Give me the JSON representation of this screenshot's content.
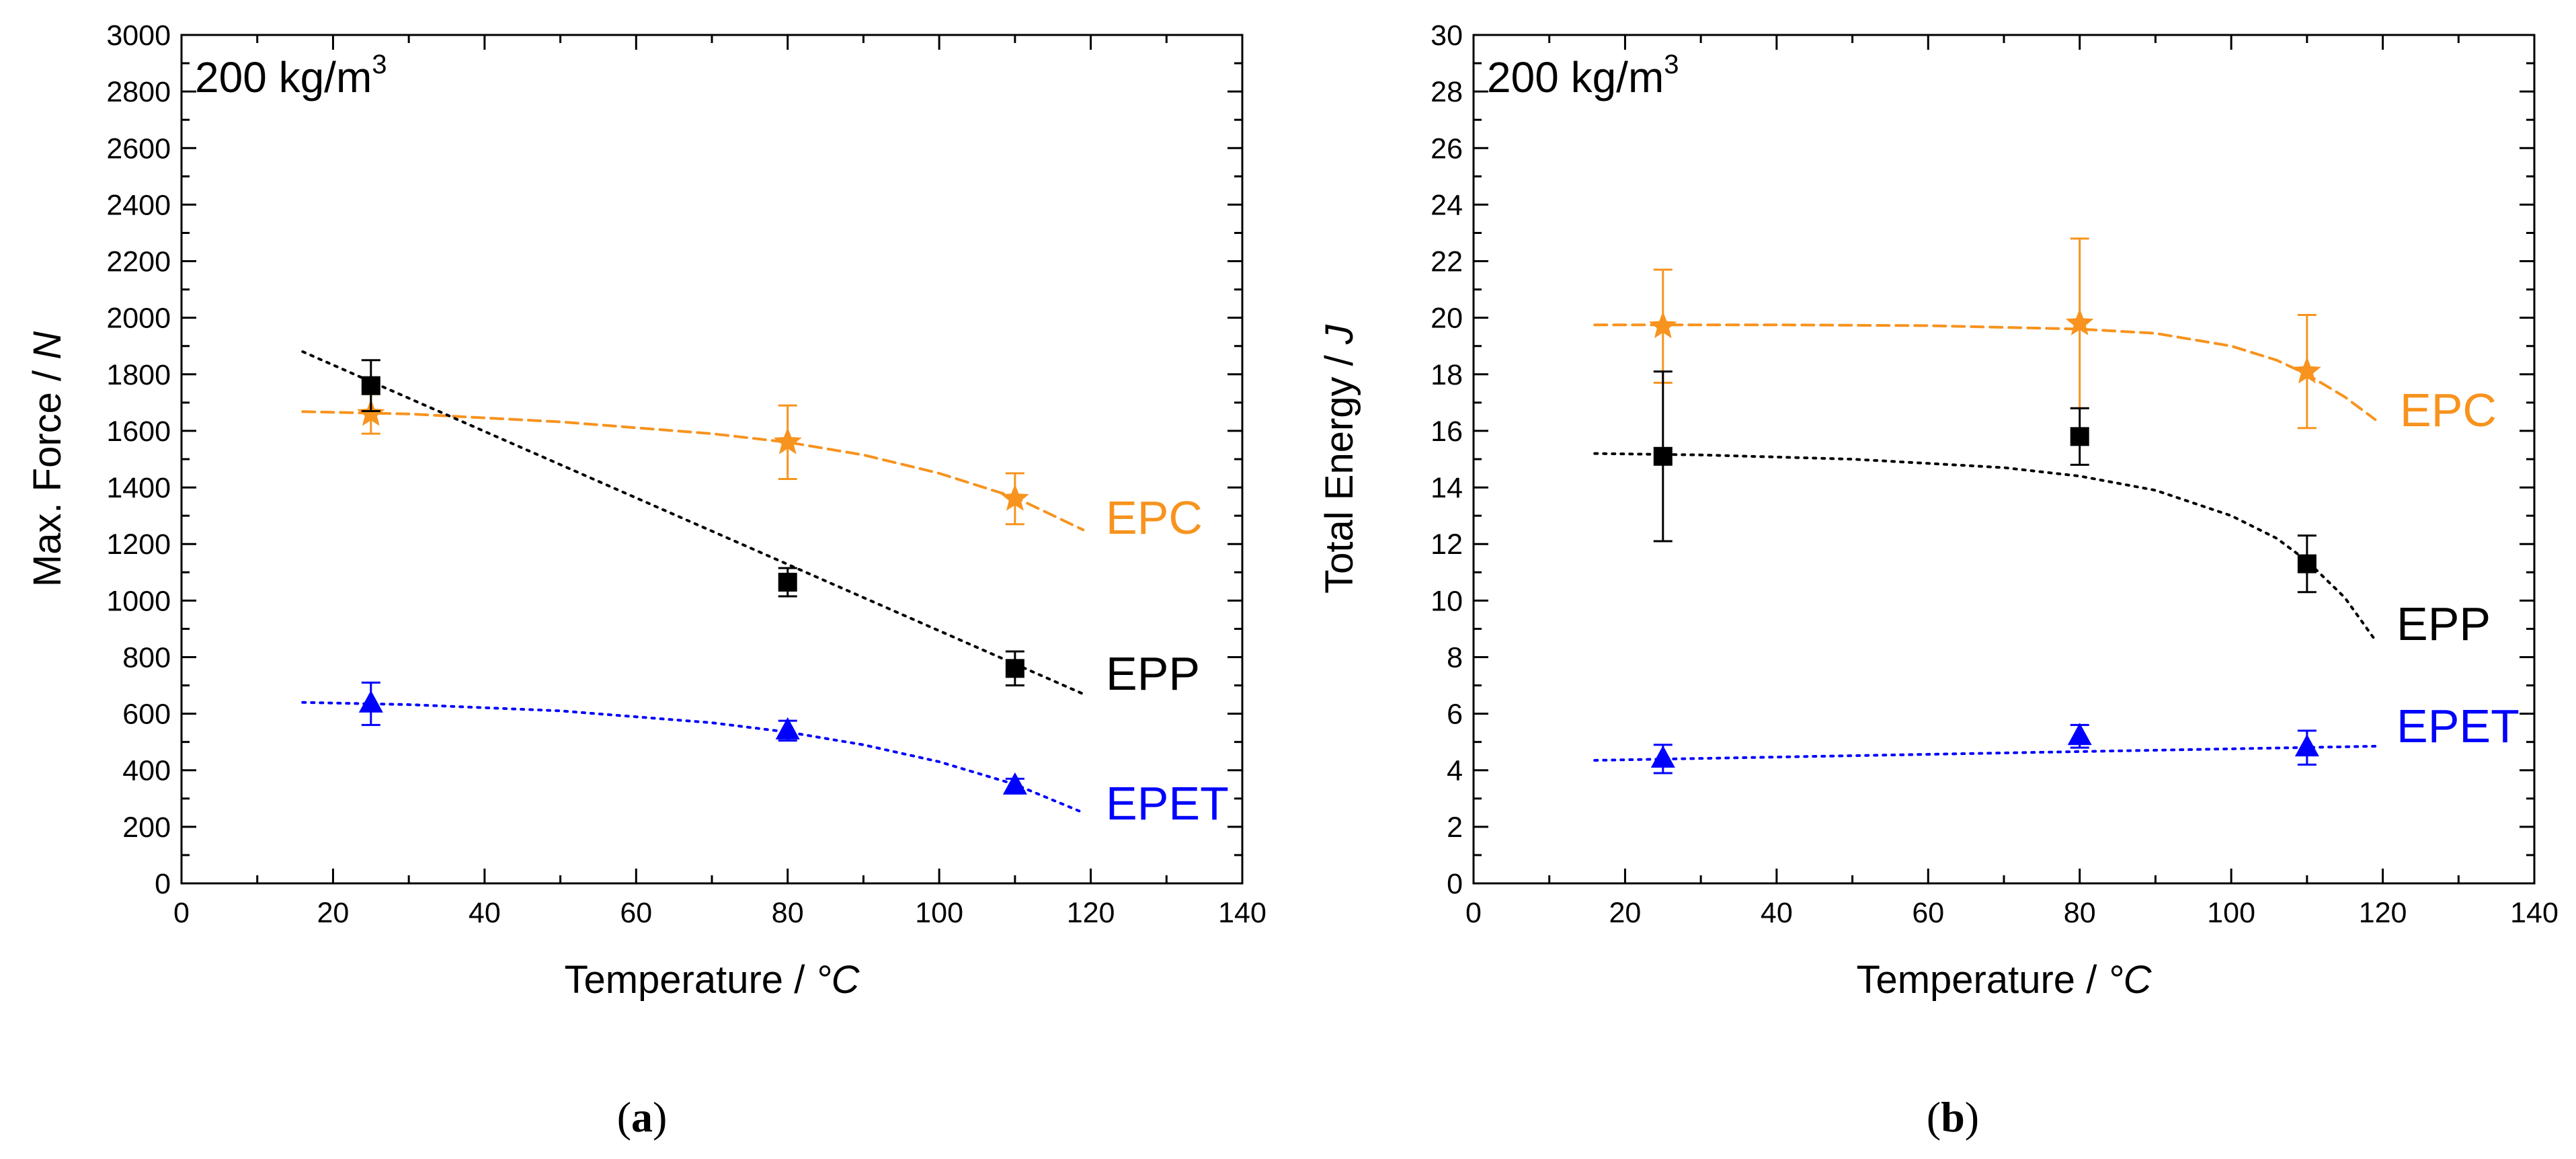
{
  "colors": {
    "EPC": "#f7931e",
    "EPP": "#000000",
    "EPET": "#0000ff"
  },
  "chart_data": [
    {
      "type": "scatter",
      "panel_label": "(a)",
      "panel_letter": "a",
      "annotation": "200 kg/m",
      "annotation_sup": "3",
      "xlabel": "Temperature",
      "xunit": "°C",
      "ylabel": "Max. Force",
      "yunit": "N",
      "xlim": [
        0,
        140
      ],
      "ylim": [
        0,
        3000
      ],
      "xticks": [
        0,
        20,
        40,
        60,
        80,
        100,
        120,
        140
      ],
      "yticks": [
        0,
        200,
        400,
        600,
        800,
        1000,
        1200,
        1400,
        1600,
        1800,
        2000,
        2200,
        2400,
        2600,
        2800,
        3000
      ],
      "grid": false,
      "series": [
        {
          "name": "EPC",
          "marker": "star",
          "x": [
            25,
            80,
            110
          ],
          "y": [
            1660,
            1560,
            1360
          ],
          "err": [
            70,
            130,
            90
          ],
          "fit": {
            "x": [
              16,
              30,
              50,
              70,
              80,
              90,
              100,
              110,
              119
            ],
            "y": [
              1668,
              1660,
              1632,
              1590,
              1560,
              1515,
              1450,
              1365,
              1250
            ],
            "style": "dashed"
          }
        },
        {
          "name": "EPP",
          "marker": "square",
          "x": [
            25,
            80,
            110
          ],
          "y": [
            1760,
            1065,
            760
          ],
          "err": [
            90,
            50,
            60
          ],
          "fit": {
            "x": [
              16,
              119
            ],
            "y": [
              1880,
              670
            ],
            "style": "dotted"
          }
        },
        {
          "name": "EPET",
          "marker": "triangle",
          "x": [
            25,
            80,
            110
          ],
          "y": [
            635,
            540,
            345
          ],
          "err": [
            75,
            35,
            25
          ],
          "fit": {
            "x": [
              16,
              30,
              50,
              70,
              80,
              90,
              100,
              110,
              119
            ],
            "y": [
              640,
              632,
              610,
              568,
              535,
              490,
              430,
              350,
              250
            ],
            "style": "dotted"
          }
        }
      ]
    },
    {
      "type": "scatter",
      "panel_label": "(b)",
      "panel_letter": "b",
      "annotation": "200 kg/m",
      "annotation_sup": "3",
      "xlabel": "Temperature",
      "xunit": "°C",
      "ylabel": "Total Energy",
      "yunit": "J",
      "xlim": [
        0,
        140
      ],
      "ylim": [
        0,
        30
      ],
      "xticks": [
        0,
        20,
        40,
        60,
        80,
        100,
        120,
        140
      ],
      "yticks": [
        0,
        2,
        4,
        6,
        8,
        10,
        12,
        14,
        16,
        18,
        20,
        22,
        24,
        26,
        28,
        30
      ],
      "grid": false,
      "series": [
        {
          "name": "EPC",
          "marker": "star",
          "x": [
            25,
            80,
            110
          ],
          "y": [
            19.7,
            19.8,
            18.1
          ],
          "err": [
            2.0,
            3.0,
            2.0
          ],
          "fit": {
            "x": [
              16,
              40,
              60,
              80,
              90,
              100,
              106,
              110,
              115,
              119
            ],
            "y": [
              19.75,
              19.75,
              19.72,
              19.6,
              19.45,
              19.0,
              18.5,
              18.0,
              17.2,
              16.4
            ],
            "style": "dashed"
          }
        },
        {
          "name": "EPP",
          "marker": "square",
          "x": [
            25,
            80,
            110
          ],
          "y": [
            15.1,
            15.8,
            11.3
          ],
          "err": [
            3.0,
            1.0,
            1.0
          ],
          "fit": {
            "x": [
              16,
              30,
              50,
              70,
              80,
              90,
              100,
              106,
              110,
              115,
              119
            ],
            "y": [
              15.2,
              15.15,
              15.0,
              14.7,
              14.4,
              13.9,
              13.0,
              12.2,
              11.4,
              10.1,
              8.6
            ],
            "style": "dotted"
          }
        },
        {
          "name": "EPET",
          "marker": "triangle",
          "x": [
            25,
            80,
            110
          ],
          "y": [
            4.4,
            5.2,
            4.8
          ],
          "err": [
            0.5,
            0.4,
            0.6
          ],
          "fit": {
            "x": [
              16,
              119
            ],
            "y": [
              4.35,
              4.85
            ],
            "style": "dotted"
          }
        }
      ]
    }
  ]
}
